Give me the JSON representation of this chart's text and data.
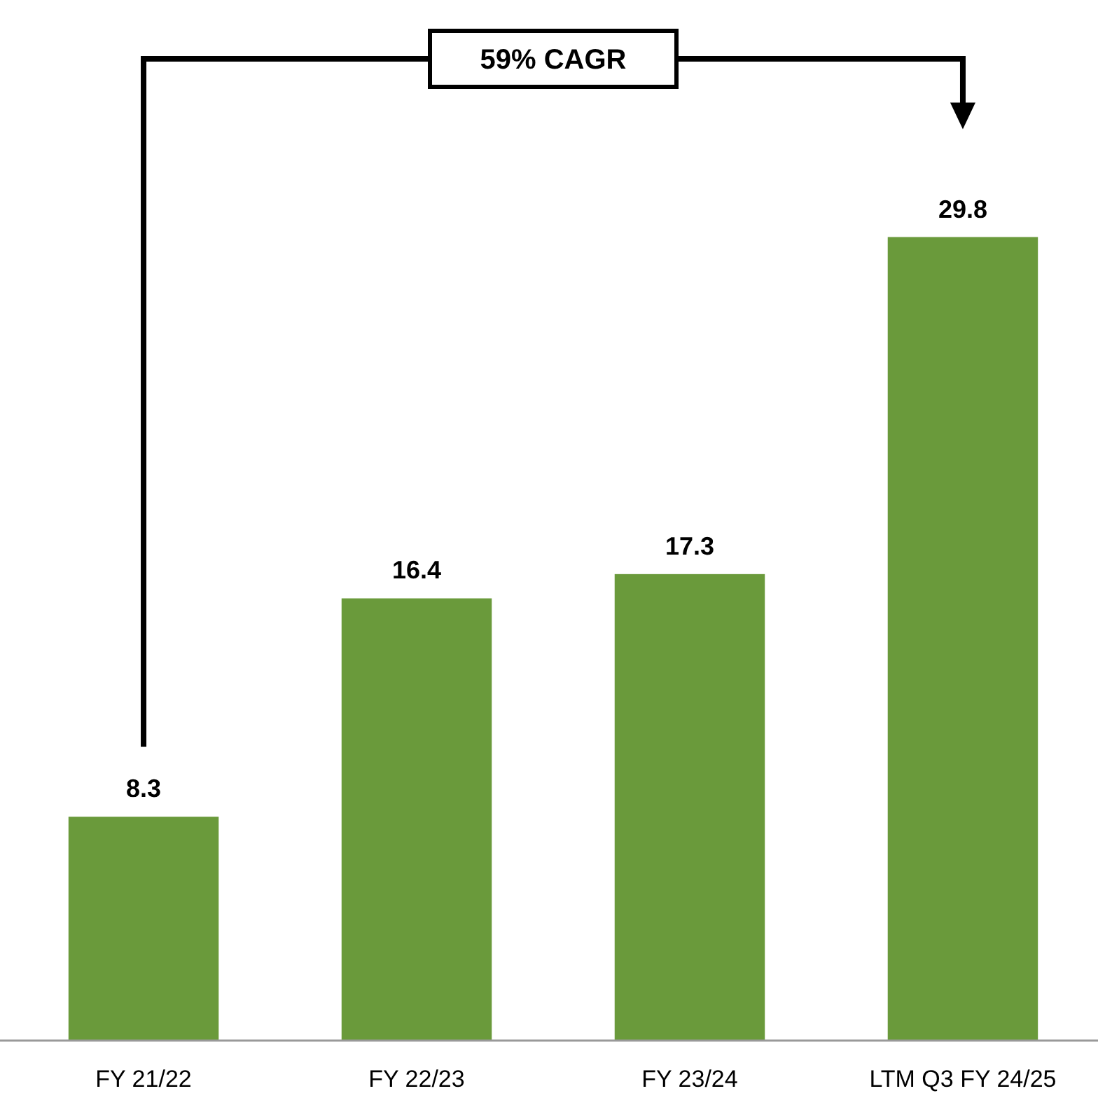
{
  "chart_data": {
    "type": "bar",
    "categories": [
      "FY 21/22",
      "FY 22/23",
      "FY 23/24",
      "LTM Q3 FY 24/25"
    ],
    "values": [
      8.3,
      16.4,
      17.3,
      29.8
    ],
    "color": "#6a9a3b",
    "data_labels": true,
    "grid": false,
    "annotations": [
      "59% CAGR"
    ]
  }
}
